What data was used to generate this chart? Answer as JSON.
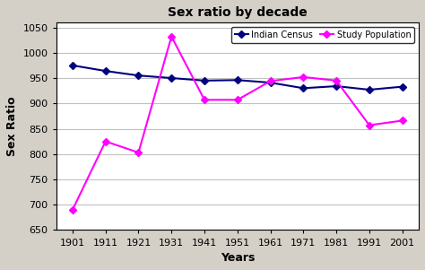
{
  "title": "Sex ratio by decade",
  "xlabel": "Years",
  "ylabel": "Sex Ratio",
  "years": [
    1901,
    1911,
    1921,
    1931,
    1941,
    1951,
    1961,
    1971,
    1981,
    1991,
    2001
  ],
  "indian_census": [
    975,
    964,
    955,
    950,
    945,
    946,
    941,
    930,
    934,
    927,
    933
  ],
  "study_population": [
    690,
    825,
    803,
    1032,
    907,
    907,
    944,
    952,
    945,
    857,
    866
  ],
  "indian_census_color": "#000080",
  "study_population_color": "#FF00FF",
  "ylim": [
    650,
    1060
  ],
  "yticks": [
    650,
    700,
    750,
    800,
    850,
    900,
    950,
    1000,
    1050
  ],
  "plot_bg_color": "#FFFFFF",
  "fig_bg_color": "#D4D0C8",
  "legend_labels": [
    "Indian Census",
    "Study Population"
  ],
  "title_fontsize": 10,
  "axis_label_fontsize": 9,
  "tick_fontsize": 8
}
